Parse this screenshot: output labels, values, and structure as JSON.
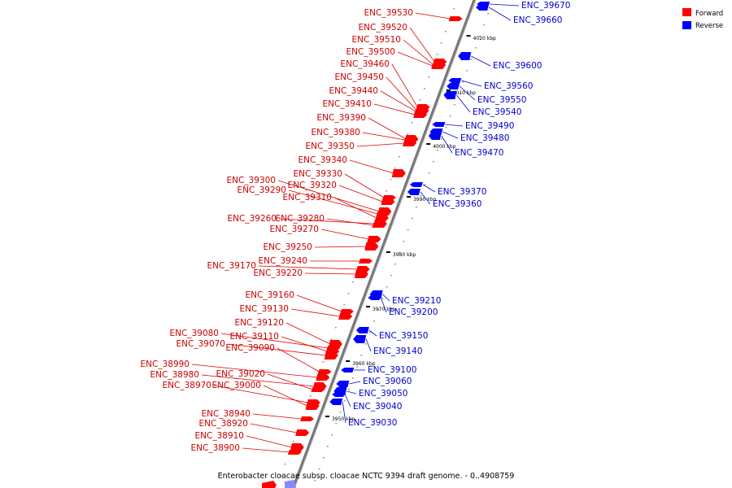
{
  "caption": "Enterobacter cloacae subsp. cloacae NCTC 9394 draft genome. - 0..4908759",
  "legend": [
    {
      "label": "Forward",
      "color": "#ff0000"
    },
    {
      "label": "Reverse",
      "color": "#0000ff"
    }
  ],
  "colors": {
    "forward": "#ff0000",
    "reverse": "#0000ff",
    "forward_label": "#cc0000",
    "reverse_label": "#0000cc"
  },
  "ticks": [
    "4020 kbp",
    "4010 kbp",
    "4000 kbp",
    "3990 kbp",
    "3980 kbp",
    "3970 kbp",
    "3960 kbp",
    "3950 kbp"
  ],
  "forward_genes": [
    "ENC_39530",
    "ENC_39520",
    "ENC_39510",
    "ENC_39500",
    "ENC_39460",
    "ENC_39450",
    "ENC_39440",
    "ENC_39410",
    "ENC_39390",
    "ENC_39380",
    "ENC_39350",
    "ENC_39340",
    "ENC_39330",
    "ENC_39320",
    "ENC_39300",
    "ENC_39290",
    "ENC_39310",
    "ENC_39260",
    "ENC_39280",
    "ENC_39270",
    "ENC_39250",
    "ENC_39240",
    "ENC_39170",
    "ENC_39220",
    "ENC_39160",
    "ENC_39130",
    "ENC_39120",
    "ENC_39080",
    "ENC_39110",
    "ENC_39070",
    "ENC_39090",
    "ENC_38990",
    "ENC_38980",
    "ENC_39020",
    "ENC_38970",
    "ENC_39000",
    "ENC_38940",
    "ENC_38920",
    "ENC_38910",
    "ENC_38900"
  ],
  "reverse_genes": [
    "ENC_39670",
    "ENC_39660",
    "ENC_39600",
    "ENC_39560",
    "ENC_39550",
    "ENC_39540",
    "ENC_39490",
    "ENC_39480",
    "ENC_39470",
    "ENC_39370",
    "ENC_39360",
    "ENC_39210",
    "ENC_39200",
    "ENC_39150",
    "ENC_39140",
    "ENC_39100",
    "ENC_39060",
    "ENC_39050",
    "ENC_39040",
    "ENC_39030"
  ]
}
